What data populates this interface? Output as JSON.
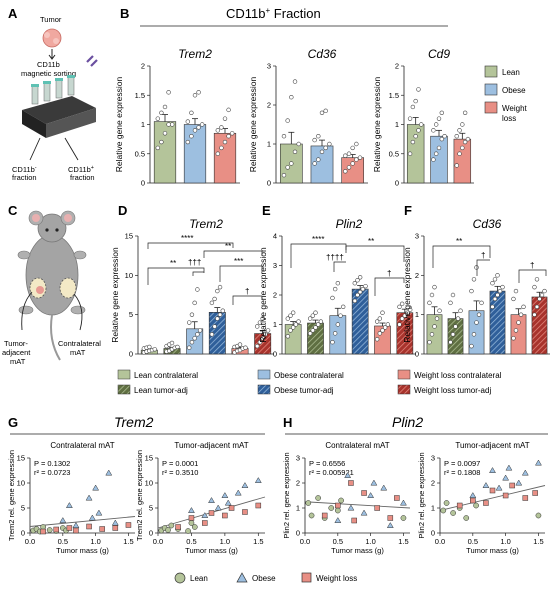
{
  "colors": {
    "lean": "#b4c49a",
    "obese": "#9dbfe0",
    "weightloss": "#e88f85",
    "lean_dark": "#5f6f42",
    "obese_dark": "#2f5f9a",
    "weightloss_dark": "#a8332c"
  },
  "panelA": {
    "letter": "A",
    "tumor": "Tumor",
    "sorting": "CD11b\nmagnetic sorting",
    "neg": "CD11b- fraction",
    "pos": "CD11b+ fraction"
  },
  "panelB": {
    "letter": "B",
    "title": "CD11b+ Fraction",
    "legend": [
      "Lean",
      "Obese",
      "Weight loss"
    ]
  },
  "panelC": {
    "letter": "C",
    "adj": "Tumor-adjacent mAT",
    "contra": "Contralateral mAT"
  },
  "bottom_legend": [
    "Lean contralateral",
    "Obese contralateral",
    "Weight loss contralateral",
    "Lean tumor-adj",
    "Obese tumor-adj",
    "Weight loss tumor-adj"
  ],
  "scatter_legend": [
    "Lean",
    "Obese",
    "Weight loss"
  ],
  "panelG": {
    "letter": "G",
    "title": "Trem2"
  },
  "panelH": {
    "letter": "H",
    "title": "Plin2"
  },
  "chart_data": [
    {
      "id": "B1",
      "type": "bar",
      "title": "Trem2",
      "ylabel": "Relative gene expression",
      "categories": [
        "Lean",
        "Obese",
        "Weight loss"
      ],
      "values": [
        1.05,
        1.0,
        0.85
      ],
      "errors": [
        0.12,
        0.1,
        0.08
      ],
      "ylim": [
        0,
        2.0
      ],
      "yticks": [
        0,
        0.5,
        1.0,
        1.5,
        2.0
      ],
      "points": [
        [
          0.6,
          0.7,
          0.85,
          1.0,
          1.0,
          1.1,
          1.2,
          1.3,
          1.55
        ],
        [
          0.7,
          0.8,
          0.9,
          0.95,
          1.0,
          1.05,
          1.2,
          1.5,
          1.55
        ],
        [
          0.5,
          0.6,
          0.7,
          0.8,
          0.85,
          0.9,
          0.95,
          1.1,
          1.25
        ]
      ]
    },
    {
      "id": "B2",
      "type": "bar",
      "title": "Cd36",
      "ylabel": "Relative gene expression",
      "categories": [
        "Lean",
        "Obese",
        "Weight loss"
      ],
      "values": [
        1.0,
        0.95,
        0.65
      ],
      "errors": [
        0.3,
        0.15,
        0.08
      ],
      "ylim": [
        0,
        3
      ],
      "yticks": [
        0,
        1,
        2,
        3
      ],
      "points": [
        [
          0.2,
          0.4,
          0.5,
          0.8,
          1.0,
          1.2,
          1.6,
          2.2,
          2.6
        ],
        [
          0.5,
          0.6,
          0.8,
          0.9,
          1.0,
          1.1,
          1.2,
          1.8,
          1.85
        ],
        [
          0.3,
          0.4,
          0.5,
          0.6,
          0.65,
          0.7,
          0.75,
          0.9,
          1.0
        ]
      ]
    },
    {
      "id": "B3",
      "type": "bar",
      "title": "Cd9",
      "ylabel": "Relative gene expression",
      "categories": [
        "Lean",
        "Obese",
        "Weight loss"
      ],
      "values": [
        1.0,
        0.8,
        0.75
      ],
      "errors": [
        0.12,
        0.1,
        0.1
      ],
      "ylim": [
        0,
        2.0
      ],
      "yticks": [
        0,
        0.5,
        1.0,
        1.5,
        2.0
      ],
      "points": [
        [
          0.5,
          0.7,
          0.8,
          0.9,
          1.0,
          1.1,
          1.3,
          1.4,
          1.6
        ],
        [
          0.4,
          0.5,
          0.6,
          0.75,
          0.8,
          0.9,
          1.0,
          1.1,
          1.2
        ],
        [
          0.3,
          0.5,
          0.6,
          0.7,
          0.75,
          0.8,
          0.9,
          1.0,
          1.2
        ]
      ]
    },
    {
      "id": "D",
      "type": "bar",
      "title": "Trem2",
      "ylabel": "Relative gene expression",
      "categories": [
        "Lean contralateral",
        "Lean tumor-adj",
        "Obese contralateral",
        "Obese tumor-adj",
        "Weight loss contralateral",
        "Weight loss tumor-adj"
      ],
      "values": [
        0.5,
        0.7,
        3.2,
        5.3,
        0.7,
        2.6
      ],
      "errors": [
        0.1,
        0.15,
        0.9,
        0.6,
        0.15,
        0.4
      ],
      "ylim": [
        0,
        15
      ],
      "yticks": [
        0,
        5,
        10,
        15
      ],
      "points": [
        [
          0.2,
          0.3,
          0.4,
          0.5,
          0.6,
          0.7,
          0.8,
          0.9
        ],
        [
          0.3,
          0.4,
          0.6,
          0.8,
          0.9,
          1.0,
          1.2,
          1.4
        ],
        [
          0.8,
          1.5,
          2.0,
          2.5,
          3.0,
          4.0,
          5.0,
          6.5,
          8.2
        ],
        [
          2.5,
          3.5,
          4.5,
          5.0,
          5.5,
          6.5,
          7.0,
          8.0,
          8.5
        ],
        [
          0.2,
          0.4,
          0.5,
          0.7,
          0.8,
          0.9,
          1.0,
          1.2
        ],
        [
          1.0,
          1.5,
          2.0,
          2.5,
          3.0,
          3.5,
          4.0,
          4.5
        ]
      ],
      "significance": [
        "**",
        "****",
        "**",
        "†††",
        "***",
        "†"
      ]
    },
    {
      "id": "E",
      "type": "bar",
      "title": "Plin2",
      "ylabel": "Relative gene expression",
      "categories": [
        "Lean contralateral",
        "Lean tumor-adj",
        "Obese contralateral",
        "Obese tumor-adj",
        "Weight loss contralateral",
        "Weight loss tumor-adj"
      ],
      "values": [
        1.0,
        1.05,
        1.3,
        2.2,
        0.95,
        1.4
      ],
      "errors": [
        0.1,
        0.1,
        0.25,
        0.12,
        0.1,
        0.12
      ],
      "ylim": [
        0,
        4
      ],
      "yticks": [
        0,
        1,
        2,
        3,
        4
      ],
      "points": [
        [
          0.6,
          0.8,
          0.9,
          1.0,
          1.1,
          1.2,
          1.3,
          1.4
        ],
        [
          0.7,
          0.8,
          0.9,
          1.0,
          1.1,
          1.2,
          1.3,
          1.4
        ],
        [
          0.4,
          0.7,
          1.0,
          1.3,
          1.6,
          1.9,
          2.2,
          2.4
        ],
        [
          1.8,
          2.0,
          2.1,
          2.2,
          2.3,
          2.4,
          2.5,
          2.6
        ],
        [
          0.5,
          0.7,
          0.8,
          0.9,
          1.0,
          1.1,
          1.2,
          1.4
        ],
        [
          1.0,
          1.2,
          1.3,
          1.4,
          1.5,
          1.6,
          1.7
        ]
      ],
      "significance": [
        "****",
        "**",
        "††††",
        "†"
      ]
    },
    {
      "id": "F",
      "type": "bar",
      "title": "Cd36",
      "ylabel": "Relative gene expression",
      "categories": [
        "Lean contralateral",
        "Lean tumor-adj",
        "Obese contralateral",
        "Obese tumor-adj",
        "Weight loss contralateral",
        "Weight loss tumor-adj"
      ],
      "values": [
        1.0,
        0.9,
        1.1,
        1.6,
        1.0,
        1.45
      ],
      "errors": [
        0.2,
        0.15,
        0.25,
        0.12,
        0.15,
        0.12
      ],
      "ylim": [
        0,
        3
      ],
      "yticks": [
        0,
        1,
        2,
        3
      ],
      "points": [
        [
          0.3,
          0.5,
          0.7,
          0.9,
          1.1,
          1.3,
          1.5,
          1.7
        ],
        [
          0.3,
          0.5,
          0.7,
          0.9,
          1.1,
          1.3,
          1.5
        ],
        [
          0.2,
          0.5,
          0.8,
          1.0,
          1.3,
          1.6,
          1.9,
          2.2
        ],
        [
          1.2,
          1.4,
          1.5,
          1.6,
          1.7,
          1.8,
          1.9,
          2.0
        ],
        [
          0.4,
          0.6,
          0.8,
          1.0,
          1.2,
          1.4,
          1.6
        ],
        [
          1.0,
          1.2,
          1.4,
          1.5,
          1.6,
          1.7,
          1.9
        ]
      ],
      "significance": [
        "**",
        "†",
        "†"
      ]
    },
    {
      "id": "G1",
      "type": "scatter",
      "title": "Contralateral mAT",
      "ylabel": "Trem2 rel. gene expression",
      "xlabel": "Tumor mass (g)",
      "xlim": [
        0,
        1.6
      ],
      "ylim": [
        0,
        15
      ],
      "xticks": [
        0.0,
        0.5,
        1.0,
        1.5
      ],
      "yticks": [
        0,
        5,
        10,
        15
      ],
      "stats": [
        "P = 0.1302",
        "r² = 0.0723"
      ],
      "fit": [
        [
          0,
          1.3
        ],
        [
          1.6,
          3.3
        ]
      ],
      "lean": [
        [
          0.05,
          0.5
        ],
        [
          0.1,
          0.8
        ],
        [
          0.15,
          0.3
        ],
        [
          0.2,
          1.2
        ],
        [
          0.3,
          0.6
        ],
        [
          0.4,
          0.4
        ],
        [
          0.5,
          1.0
        ],
        [
          0.55,
          0.5
        ]
      ],
      "obese": [
        [
          0.5,
          2.5
        ],
        [
          0.6,
          5.5
        ],
        [
          0.7,
          1.5
        ],
        [
          0.9,
          7.0
        ],
        [
          0.95,
          3.0
        ],
        [
          1.0,
          9.0
        ],
        [
          1.05,
          4.0
        ],
        [
          1.2,
          12.0
        ],
        [
          1.3,
          2.0
        ]
      ],
      "weightloss": [
        [
          0.2,
          0.3
        ],
        [
          0.4,
          0.7
        ],
        [
          0.6,
          1.0
        ],
        [
          0.7,
          0.5
        ],
        [
          0.9,
          1.3
        ],
        [
          1.1,
          0.8
        ],
        [
          1.3,
          1.0
        ],
        [
          1.5,
          1.6
        ]
      ]
    },
    {
      "id": "G2",
      "type": "scatter",
      "title": "Tumor-adjacent mAT",
      "ylabel": "Trem2 rel. gene expression",
      "xlabel": "Tumor mass (g)",
      "xlim": [
        0,
        1.6
      ],
      "ylim": [
        0,
        15
      ],
      "xticks": [
        0.0,
        0.5,
        1.0,
        1.5
      ],
      "yticks": [
        0,
        5,
        10,
        15
      ],
      "stats": [
        "P = 0.0001",
        "r² = 0.3510"
      ],
      "fit": [
        [
          0,
          1.0
        ],
        [
          1.6,
          7.2
        ]
      ],
      "lean": [
        [
          0.05,
          0.5
        ],
        [
          0.1,
          1.0
        ],
        [
          0.15,
          0.6
        ],
        [
          0.2,
          1.5
        ],
        [
          0.3,
          0.8
        ],
        [
          0.45,
          0.4
        ],
        [
          0.5,
          2.0
        ],
        [
          0.55,
          1.2
        ]
      ],
      "obese": [
        [
          0.5,
          4.5
        ],
        [
          0.7,
          3.5
        ],
        [
          0.8,
          6.5
        ],
        [
          0.9,
          5.0
        ],
        [
          1.0,
          7.5
        ],
        [
          1.05,
          6.0
        ],
        [
          1.2,
          8.0
        ],
        [
          1.3,
          9.5
        ],
        [
          1.5,
          10.5
        ]
      ],
      "weightloss": [
        [
          0.3,
          1.2
        ],
        [
          0.5,
          3.0
        ],
        [
          0.7,
          2.0
        ],
        [
          0.8,
          4.0
        ],
        [
          1.0,
          3.5
        ],
        [
          1.1,
          5.0
        ],
        [
          1.3,
          4.2
        ],
        [
          1.5,
          5.5
        ]
      ]
    },
    {
      "id": "H1",
      "type": "scatter",
      "title": "Contralateral mAT",
      "ylabel": "Plin2 rel. gene expression",
      "xlabel": "Tumor mass (g)",
      "xlim": [
        0,
        1.6
      ],
      "ylim": [
        0,
        3
      ],
      "xticks": [
        0.0,
        0.5,
        1.0,
        1.5
      ],
      "yticks": [
        0,
        1,
        2,
        3
      ],
      "stats": [
        "P = 0.6556",
        "r² = 0.005921"
      ],
      "fit": [
        [
          0,
          1.25
        ],
        [
          1.6,
          1.0
        ]
      ],
      "lean": [
        [
          0.05,
          1.2
        ],
        [
          0.1,
          0.7
        ],
        [
          0.2,
          1.4
        ],
        [
          0.3,
          0.6
        ],
        [
          0.4,
          1.0
        ],
        [
          0.5,
          0.9
        ],
        [
          0.55,
          1.3
        ],
        [
          1.5,
          0.6
        ]
      ],
      "obese": [
        [
          0.5,
          0.5
        ],
        [
          0.65,
          2.3
        ],
        [
          0.7,
          1.0
        ],
        [
          0.9,
          0.8
        ],
        [
          1.0,
          1.5
        ],
        [
          1.05,
          2.0
        ],
        [
          1.2,
          1.8
        ],
        [
          1.3,
          0.3
        ],
        [
          1.5,
          1.2
        ]
      ],
      "weightloss": [
        [
          0.3,
          0.7
        ],
        [
          0.5,
          1.1
        ],
        [
          0.7,
          2.0
        ],
        [
          0.75,
          0.5
        ],
        [
          0.9,
          1.6
        ],
        [
          1.1,
          1.0
        ],
        [
          1.3,
          0.6
        ],
        [
          1.4,
          1.4
        ]
      ]
    },
    {
      "id": "H2",
      "type": "scatter",
      "title": "Tumor-adjacent mAT",
      "ylabel": "Plin2 rel. gene expression",
      "xlabel": "Tumor mass (g)",
      "xlim": [
        0,
        1.6
      ],
      "ylim": [
        0,
        3
      ],
      "xticks": [
        0.0,
        0.5,
        1.0,
        1.5
      ],
      "yticks": [
        0,
        1,
        2,
        3
      ],
      "stats": [
        "P = 0.0097",
        "r² = 0.1808"
      ],
      "fit": [
        [
          0,
          0.9
        ],
        [
          1.6,
          1.9
        ]
      ],
      "lean": [
        [
          0.05,
          0.9
        ],
        [
          0.1,
          1.2
        ],
        [
          0.2,
          0.8
        ],
        [
          0.3,
          1.0
        ],
        [
          0.4,
          0.6
        ],
        [
          0.5,
          1.3
        ],
        [
          0.55,
          1.1
        ],
        [
          1.5,
          0.7
        ]
      ],
      "obese": [
        [
          0.5,
          1.5
        ],
        [
          0.7,
          1.9
        ],
        [
          0.8,
          2.5
        ],
        [
          0.9,
          1.8
        ],
        [
          1.0,
          2.2
        ],
        [
          1.05,
          2.6
        ],
        [
          1.2,
          2.0
        ],
        [
          1.3,
          2.4
        ],
        [
          1.5,
          2.8
        ]
      ],
      "weightloss": [
        [
          0.3,
          1.1
        ],
        [
          0.5,
          1.3
        ],
        [
          0.7,
          1.2
        ],
        [
          0.8,
          1.7
        ],
        [
          1.0,
          1.5
        ],
        [
          1.1,
          1.9
        ],
        [
          1.3,
          1.4
        ],
        [
          1.45,
          1.6
        ]
      ]
    }
  ]
}
